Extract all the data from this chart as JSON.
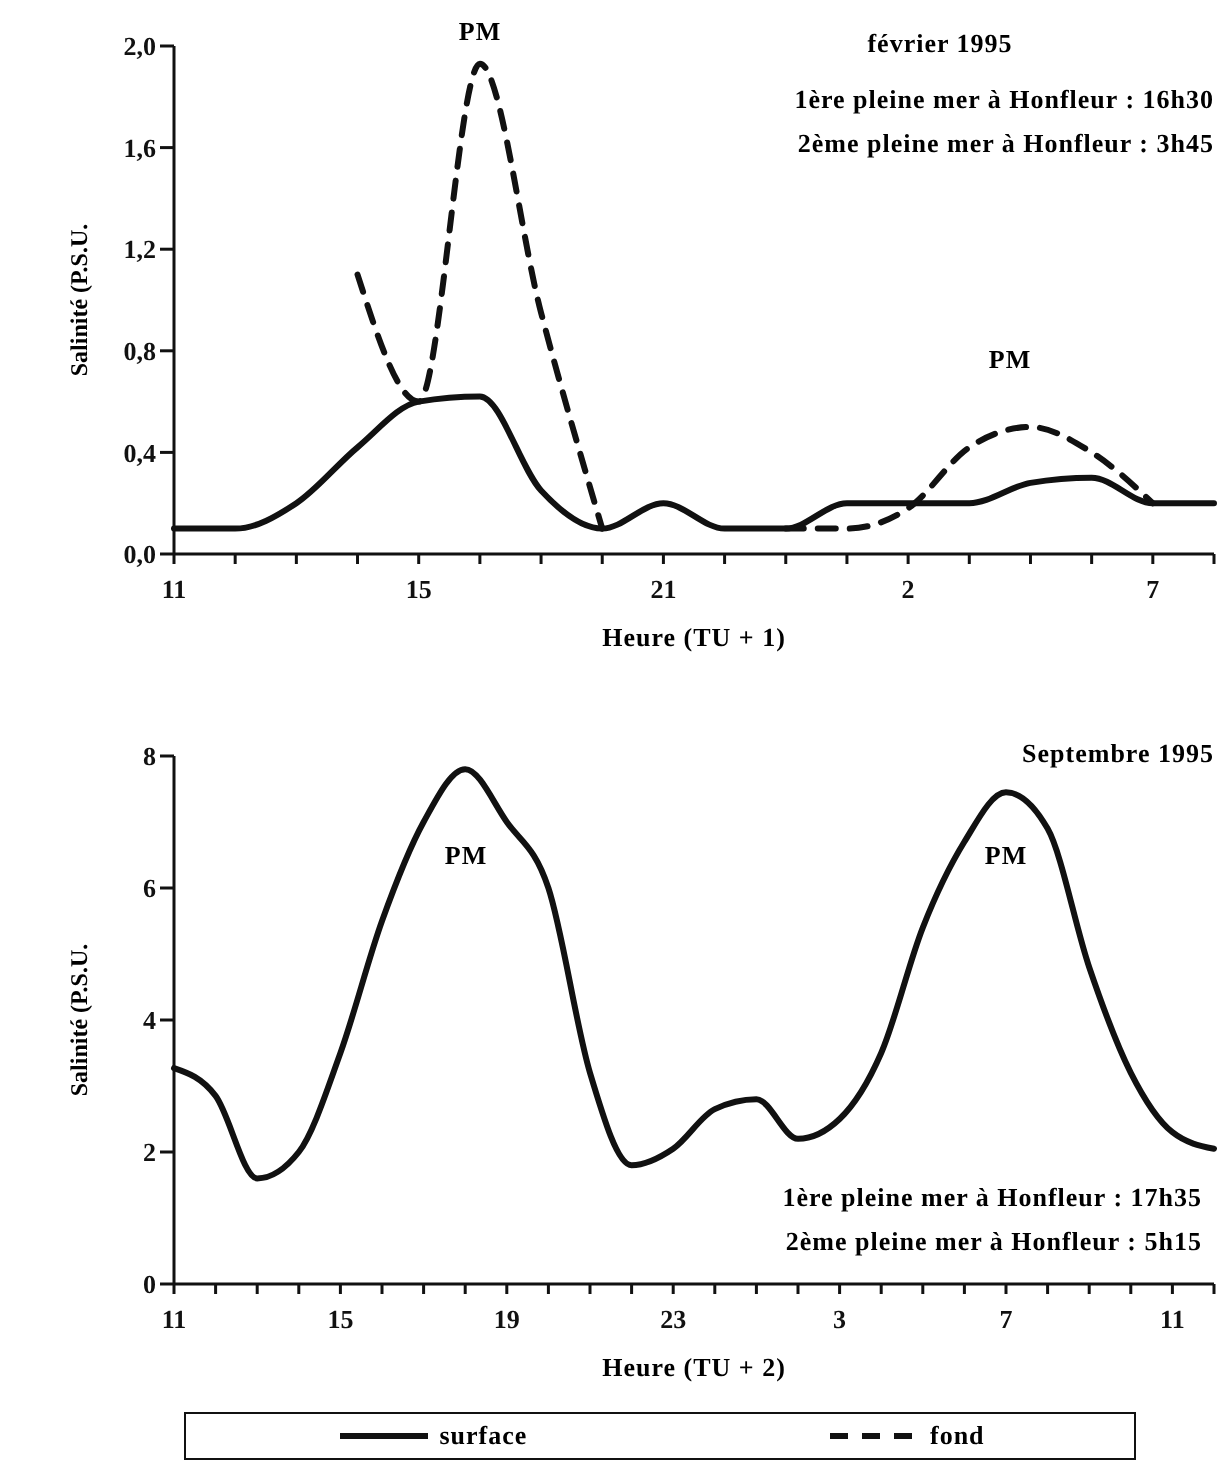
{
  "chart_data": [
    {
      "type": "line",
      "title": "février 1995",
      "xlabel": "Heure (TU + 1)",
      "ylabel": "Salinité (P.S.U.",
      "categories": [
        "11",
        null,
        null,
        null,
        "15",
        null,
        null,
        null,
        "21",
        null,
        null,
        null,
        "2",
        null,
        null,
        null,
        "7",
        null
      ],
      "series": [
        {
          "name": "surface",
          "color": "#111111",
          "line_style": "solid",
          "values": [
            0.1,
            0.1,
            0.2,
            0.42,
            0.6,
            0.62,
            0.25,
            0.1,
            0.2,
            0.1,
            0.1,
            0.2,
            0.2,
            0.2,
            0.28,
            0.3,
            0.2,
            0.2
          ]
        },
        {
          "name": "fond",
          "color": "#111111",
          "line_style": "dashed",
          "values": [
            null,
            null,
            null,
            1.1,
            0.6,
            1.93,
            0.95,
            0.1,
            null,
            null,
            0.1,
            0.1,
            0.18,
            0.42,
            0.5,
            0.4,
            0.2,
            null
          ]
        }
      ],
      "ylim": [
        0,
        2
      ],
      "yticks": [
        {
          "value": 0,
          "label": "0,0"
        },
        {
          "value": 0.4,
          "label": "0,4"
        },
        {
          "value": 0.8,
          "label": "0,8"
        },
        {
          "value": 1.2,
          "label": "1,2"
        },
        {
          "value": 1.6,
          "label": "1,6"
        },
        {
          "value": 2,
          "label": "2,0"
        }
      ],
      "annotations": [
        "PM",
        "PM",
        "1ère pleine mer à Honfleur : 16h30",
        "2ème pleine mer à Honfleur : 3h45"
      ],
      "grid": false,
      "legend": "bottom",
      "marker": "none"
    },
    {
      "type": "line",
      "title": "Septembre 1995",
      "xlabel": "Heure (TU + 2)",
      "ylabel": "Salinité (P.S.U.",
      "categories": [
        "11",
        null,
        null,
        null,
        "15",
        null,
        null,
        null,
        "19",
        null,
        null,
        null,
        "23",
        null,
        null,
        null,
        "3",
        null,
        null,
        null,
        "7",
        null,
        null,
        null,
        "11",
        null
      ],
      "series": [
        {
          "color": "#111111",
          "line_style": "solid",
          "values": [
            3.27,
            2.85,
            1.6,
            2.0,
            3.5,
            5.5,
            7.0,
            7.8,
            7.0,
            6.0,
            3.2,
            1.8,
            2.05,
            2.65,
            2.8,
            2.2,
            2.5,
            3.5,
            5.4,
            6.7,
            7.45,
            6.9,
            4.8,
            3.2,
            2.3,
            2.05
          ]
        }
      ],
      "ylim": [
        0,
        8
      ],
      "yticks": [
        0,
        2,
        4,
        6,
        8
      ],
      "annotations": [
        "PM",
        "PM",
        "1ère pleine mer à Honfleur : 17h35",
        "2ème pleine mer à Honfleur : 5h15"
      ],
      "grid": false,
      "marker": "none"
    }
  ]
}
